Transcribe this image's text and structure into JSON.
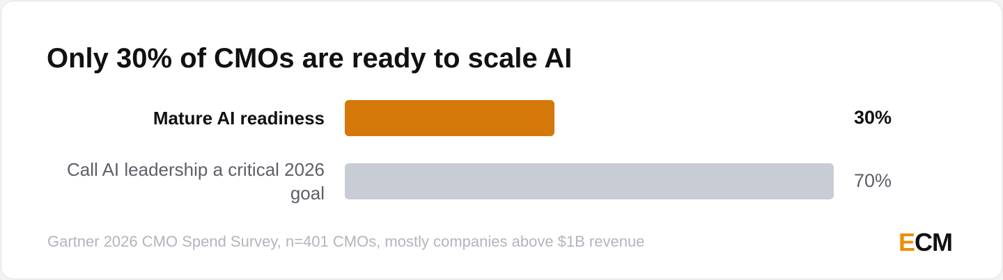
{
  "chart_data": {
    "type": "bar",
    "orientation": "horizontal",
    "title": "Only 30% of CMOs are ready to scale AI",
    "categories": [
      "Mature AI readiness",
      "Call AI leadership a critical 2026 goal"
    ],
    "values": [
      30,
      70
    ],
    "value_labels": [
      "30%",
      "70%"
    ],
    "colors": [
      "#d4780a",
      "#c8ccd4"
    ],
    "xlim": [
      0,
      100
    ],
    "source": "Gartner 2026 CMO Spend Survey, n=401 CMOs, mostly companies above $1B revenue",
    "logo": "ECM"
  }
}
